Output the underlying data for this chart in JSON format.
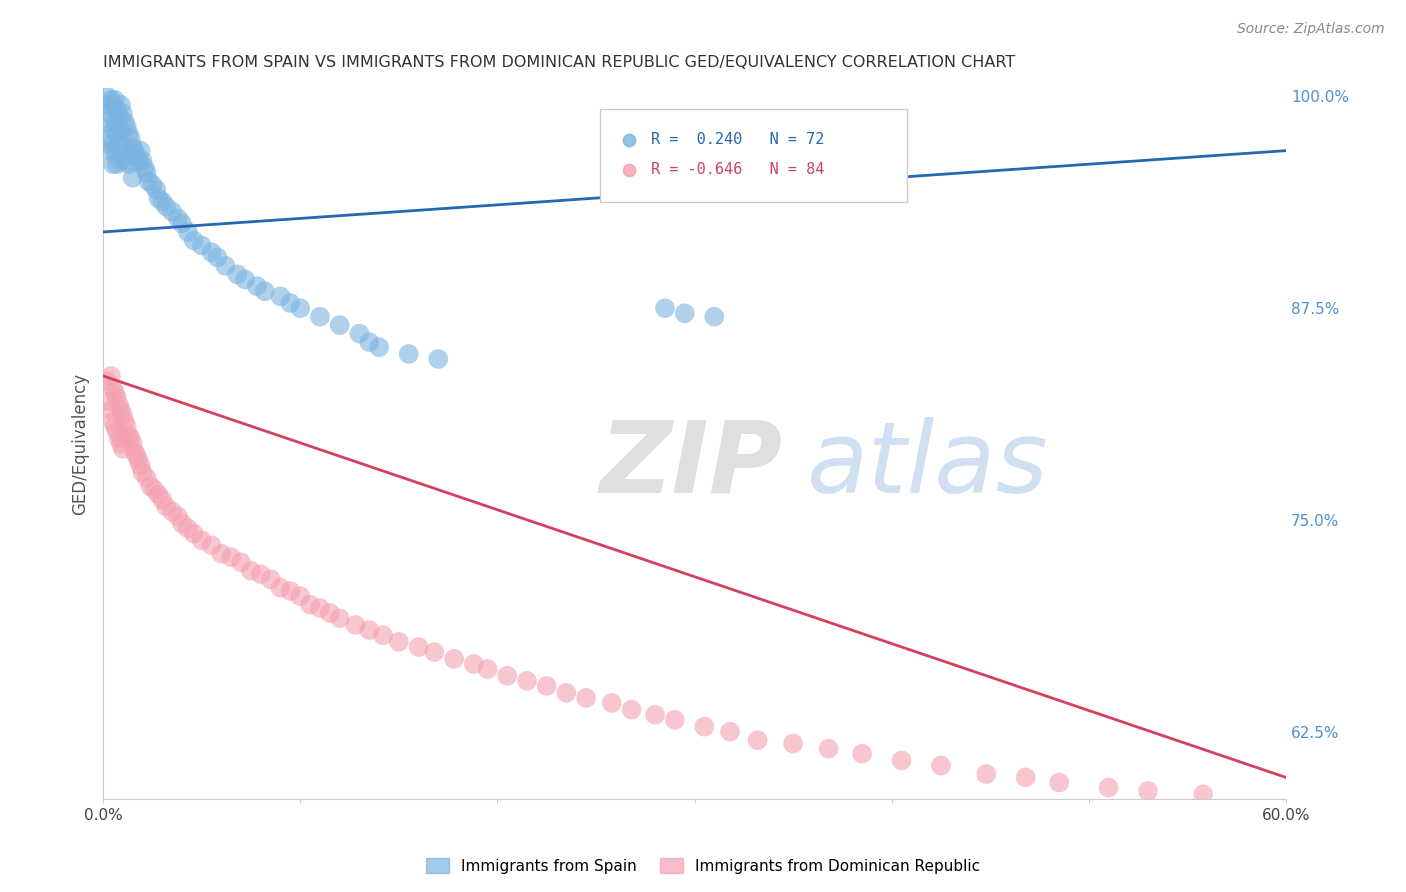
{
  "title": "IMMIGRANTS FROM SPAIN VS IMMIGRANTS FROM DOMINICAN REPUBLIC GED/EQUIVALENCY CORRELATION CHART",
  "source": "Source: ZipAtlas.com",
  "ylabel": "GED/Equivalency",
  "xlim": [
    0.0,
    0.6
  ],
  "ylim": [
    0.585,
    1.005
  ],
  "yticks": [
    0.625,
    0.75,
    0.875,
    1.0
  ],
  "yticklabels": [
    "62.5%",
    "75.0%",
    "87.5%",
    "100.0%"
  ],
  "legend1_label": "R =  0.240   N = 72",
  "legend2_label": "R = -0.646   N = 84",
  "scatter1_color": "#7ab3e0",
  "scatter2_color": "#f4a0b0",
  "trendline1_color": "#2468b0",
  "trendline2_color": "#d44060",
  "watermark_zip": "ZIP",
  "watermark_atlas": "atlas",
  "background_color": "#ffffff",
  "grid_color": "#d8d8d8",
  "title_color": "#333333",
  "right_tick_color": "#5090d0",
  "spain_x": [
    0.001,
    0.002,
    0.002,
    0.003,
    0.003,
    0.003,
    0.004,
    0.004,
    0.005,
    0.005,
    0.005,
    0.006,
    0.006,
    0.006,
    0.007,
    0.007,
    0.007,
    0.008,
    0.008,
    0.009,
    0.009,
    0.009,
    0.01,
    0.01,
    0.011,
    0.011,
    0.012,
    0.012,
    0.013,
    0.013,
    0.014,
    0.015,
    0.015,
    0.016,
    0.017,
    0.018,
    0.019,
    0.02,
    0.021,
    0.022,
    0.023,
    0.025,
    0.027,
    0.028,
    0.03,
    0.032,
    0.035,
    0.038,
    0.04,
    0.043,
    0.046,
    0.05,
    0.055,
    0.058,
    0.062,
    0.068,
    0.072,
    0.078,
    0.082,
    0.09,
    0.095,
    0.1,
    0.11,
    0.12,
    0.13,
    0.135,
    0.14,
    0.155,
    0.17,
    0.285,
    0.295,
    0.31
  ],
  "spain_y": [
    0.995,
    1.0,
    0.985,
    0.99,
    0.975,
    0.968,
    0.998,
    0.972,
    0.995,
    0.98,
    0.96,
    0.998,
    0.985,
    0.968,
    0.992,
    0.978,
    0.96,
    0.988,
    0.97,
    0.995,
    0.98,
    0.962,
    0.99,
    0.972,
    0.985,
    0.965,
    0.982,
    0.962,
    0.978,
    0.96,
    0.975,
    0.97,
    0.952,
    0.968,
    0.965,
    0.962,
    0.968,
    0.962,
    0.958,
    0.955,
    0.95,
    0.948,
    0.945,
    0.94,
    0.938,
    0.935,
    0.932,
    0.928,
    0.925,
    0.92,
    0.915,
    0.912,
    0.908,
    0.905,
    0.9,
    0.895,
    0.892,
    0.888,
    0.885,
    0.882,
    0.878,
    0.875,
    0.87,
    0.865,
    0.86,
    0.855,
    0.852,
    0.848,
    0.845,
    0.875,
    0.872,
    0.87
  ],
  "dr_x": [
    0.002,
    0.003,
    0.004,
    0.004,
    0.005,
    0.005,
    0.006,
    0.006,
    0.007,
    0.007,
    0.008,
    0.008,
    0.009,
    0.009,
    0.01,
    0.01,
    0.011,
    0.012,
    0.013,
    0.014,
    0.015,
    0.016,
    0.017,
    0.018,
    0.019,
    0.02,
    0.022,
    0.024,
    0.026,
    0.028,
    0.03,
    0.032,
    0.035,
    0.038,
    0.04,
    0.043,
    0.046,
    0.05,
    0.055,
    0.06,
    0.065,
    0.07,
    0.075,
    0.08,
    0.085,
    0.09,
    0.095,
    0.1,
    0.105,
    0.11,
    0.115,
    0.12,
    0.128,
    0.135,
    0.142,
    0.15,
    0.16,
    0.168,
    0.178,
    0.188,
    0.195,
    0.205,
    0.215,
    0.225,
    0.235,
    0.245,
    0.258,
    0.268,
    0.28,
    0.29,
    0.305,
    0.318,
    0.332,
    0.35,
    0.368,
    0.385,
    0.405,
    0.425,
    0.448,
    0.468,
    0.485,
    0.51,
    0.53,
    0.558
  ],
  "dr_y": [
    0.832,
    0.82,
    0.835,
    0.815,
    0.828,
    0.808,
    0.825,
    0.805,
    0.822,
    0.802,
    0.818,
    0.798,
    0.815,
    0.795,
    0.812,
    0.792,
    0.808,
    0.805,
    0.8,
    0.798,
    0.795,
    0.79,
    0.788,
    0.785,
    0.782,
    0.778,
    0.775,
    0.77,
    0.768,
    0.765,
    0.762,
    0.758,
    0.755,
    0.752,
    0.748,
    0.745,
    0.742,
    0.738,
    0.735,
    0.73,
    0.728,
    0.725,
    0.72,
    0.718,
    0.715,
    0.71,
    0.708,
    0.705,
    0.7,
    0.698,
    0.695,
    0.692,
    0.688,
    0.685,
    0.682,
    0.678,
    0.675,
    0.672,
    0.668,
    0.665,
    0.662,
    0.658,
    0.655,
    0.652,
    0.648,
    0.645,
    0.642,
    0.638,
    0.635,
    0.632,
    0.628,
    0.625,
    0.62,
    0.618,
    0.615,
    0.612,
    0.608,
    0.605,
    0.6,
    0.598,
    0.595,
    0.592,
    0.59,
    0.588
  ],
  "spain_trend_x": [
    0.0,
    0.6
  ],
  "spain_trend_y": [
    0.92,
    0.968
  ],
  "dr_trend_x": [
    0.0,
    0.6
  ],
  "dr_trend_y": [
    0.835,
    0.598
  ]
}
